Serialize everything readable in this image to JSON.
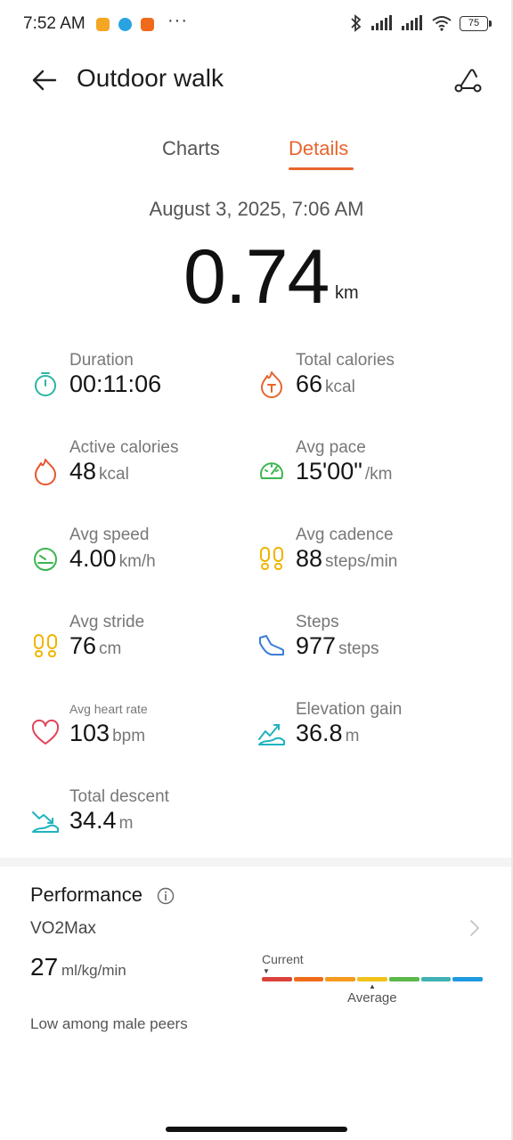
{
  "status_bar": {
    "time": "7:52 AM",
    "dots": "···",
    "battery": "75",
    "app_colors": [
      "#f5a623",
      "#2aa3e0",
      "#ef6b1a"
    ]
  },
  "header": {
    "title": "Outdoor walk"
  },
  "tabs": {
    "charts": "Charts",
    "details": "Details",
    "active": "Details"
  },
  "summary": {
    "date": "August 3, 2025, 7:06 AM",
    "distance": "0.74",
    "distance_unit": "km"
  },
  "metrics": [
    {
      "label": "Duration",
      "value": "00:11:06",
      "unit": "",
      "icon": "stopwatch-icon",
      "color": "#2bb5a4"
    },
    {
      "label": "Total calories",
      "value": "66",
      "unit": "kcal",
      "icon": "flame-total-icon",
      "color": "#e8642c"
    },
    {
      "label": "Active calories",
      "value": "48",
      "unit": "kcal",
      "icon": "flame-icon",
      "color": "#e8542c"
    },
    {
      "label": "Avg pace",
      "value": "15'00\"",
      "unit": "/km",
      "icon": "pace-gauge-icon",
      "color": "#3cb551"
    },
    {
      "label": "Avg speed",
      "value": "4.00",
      "unit": "km/h",
      "icon": "speedometer-icon",
      "color": "#3cb551"
    },
    {
      "label": "Avg cadence",
      "value": "88",
      "unit": "steps/min",
      "icon": "footprints-icon",
      "color": "#f0b400"
    },
    {
      "label": "Avg stride",
      "value": "76",
      "unit": "cm",
      "icon": "footprints-icon",
      "color": "#f0b400"
    },
    {
      "label": "Steps",
      "value": "977",
      "unit": "steps",
      "icon": "shoe-icon",
      "color": "#3b7dd8"
    },
    {
      "label": "Avg heart rate",
      "value": "103",
      "unit": "bpm",
      "icon": "heart-icon",
      "color": "#e0455a"
    },
    {
      "label": "Elevation gain",
      "value": "36.8",
      "unit": "m",
      "icon": "elevation-gain-icon",
      "color": "#1fb3bf"
    },
    {
      "label": "Total descent",
      "value": "34.4",
      "unit": "m",
      "icon": "descent-icon",
      "color": "#1fb3bf"
    }
  ],
  "performance": {
    "title": "Performance",
    "metric": "VO2Max",
    "value": "27",
    "unit": "ml/kg/min",
    "current_label": "Current",
    "average_label": "Average",
    "note": "Low among male peers",
    "scale_colors": [
      "#d9433b",
      "#ef6b1a",
      "#f59a1f",
      "#f2c21b",
      "#5bb84a",
      "#3fb1b5",
      "#1f9ae0"
    ]
  }
}
